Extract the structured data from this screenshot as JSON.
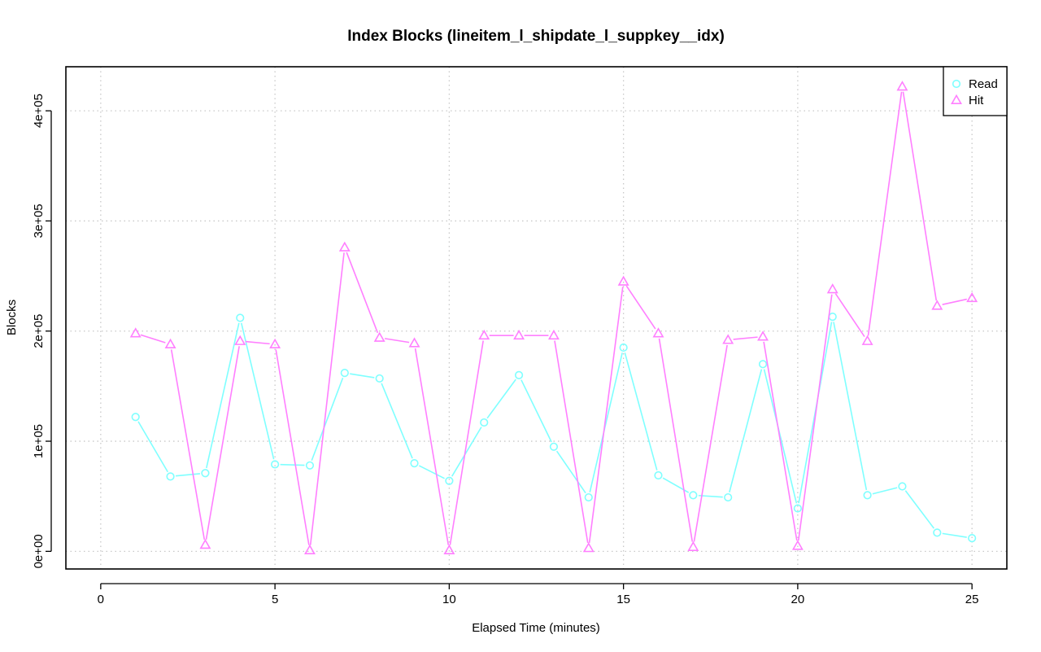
{
  "chart_data": {
    "type": "line",
    "title": "Index Blocks (lineitem_l_shipdate_l_suppkey__idx)",
    "xlabel": "Elapsed Time (minutes)",
    "ylabel": "Blocks",
    "xlim": [
      -1,
      26
    ],
    "ylim": [
      -16000,
      440000
    ],
    "xticks": [
      0,
      5,
      10,
      15,
      20,
      25
    ],
    "xtick_labels": [
      "0",
      "5",
      "10",
      "15",
      "20",
      "25"
    ],
    "yticks": [
      0,
      100000,
      200000,
      300000,
      400000
    ],
    "ytick_labels": [
      "0e+00",
      "1e+05",
      "2e+05",
      "3e+05",
      "4e+05"
    ],
    "grid": true,
    "legend_position": "top-right",
    "x": [
      1,
      2,
      3,
      4,
      5,
      6,
      7,
      8,
      9,
      10,
      11,
      12,
      13,
      14,
      15,
      16,
      17,
      18,
      19,
      20,
      21,
      22,
      23,
      24,
      25
    ],
    "series": [
      {
        "name": "Read",
        "color": "#7fffff",
        "marker": "circle",
        "values": [
          122000,
          68000,
          71000,
          212000,
          79000,
          78000,
          162000,
          157000,
          80000,
          64000,
          117000,
          160000,
          95000,
          49000,
          185000,
          69000,
          51000,
          49000,
          170000,
          39000,
          213000,
          51000,
          59000,
          17000,
          12000
        ]
      },
      {
        "name": "Hit",
        "color": "#ff7fff",
        "marker": "triangle",
        "values": [
          198000,
          188000,
          6000,
          191000,
          188000,
          1000,
          276000,
          194000,
          189000,
          1000,
          196000,
          196000,
          196000,
          3000,
          245000,
          198000,
          4000,
          192000,
          195000,
          5000,
          238000,
          191000,
          422000,
          223000,
          230000
        ]
      }
    ]
  }
}
